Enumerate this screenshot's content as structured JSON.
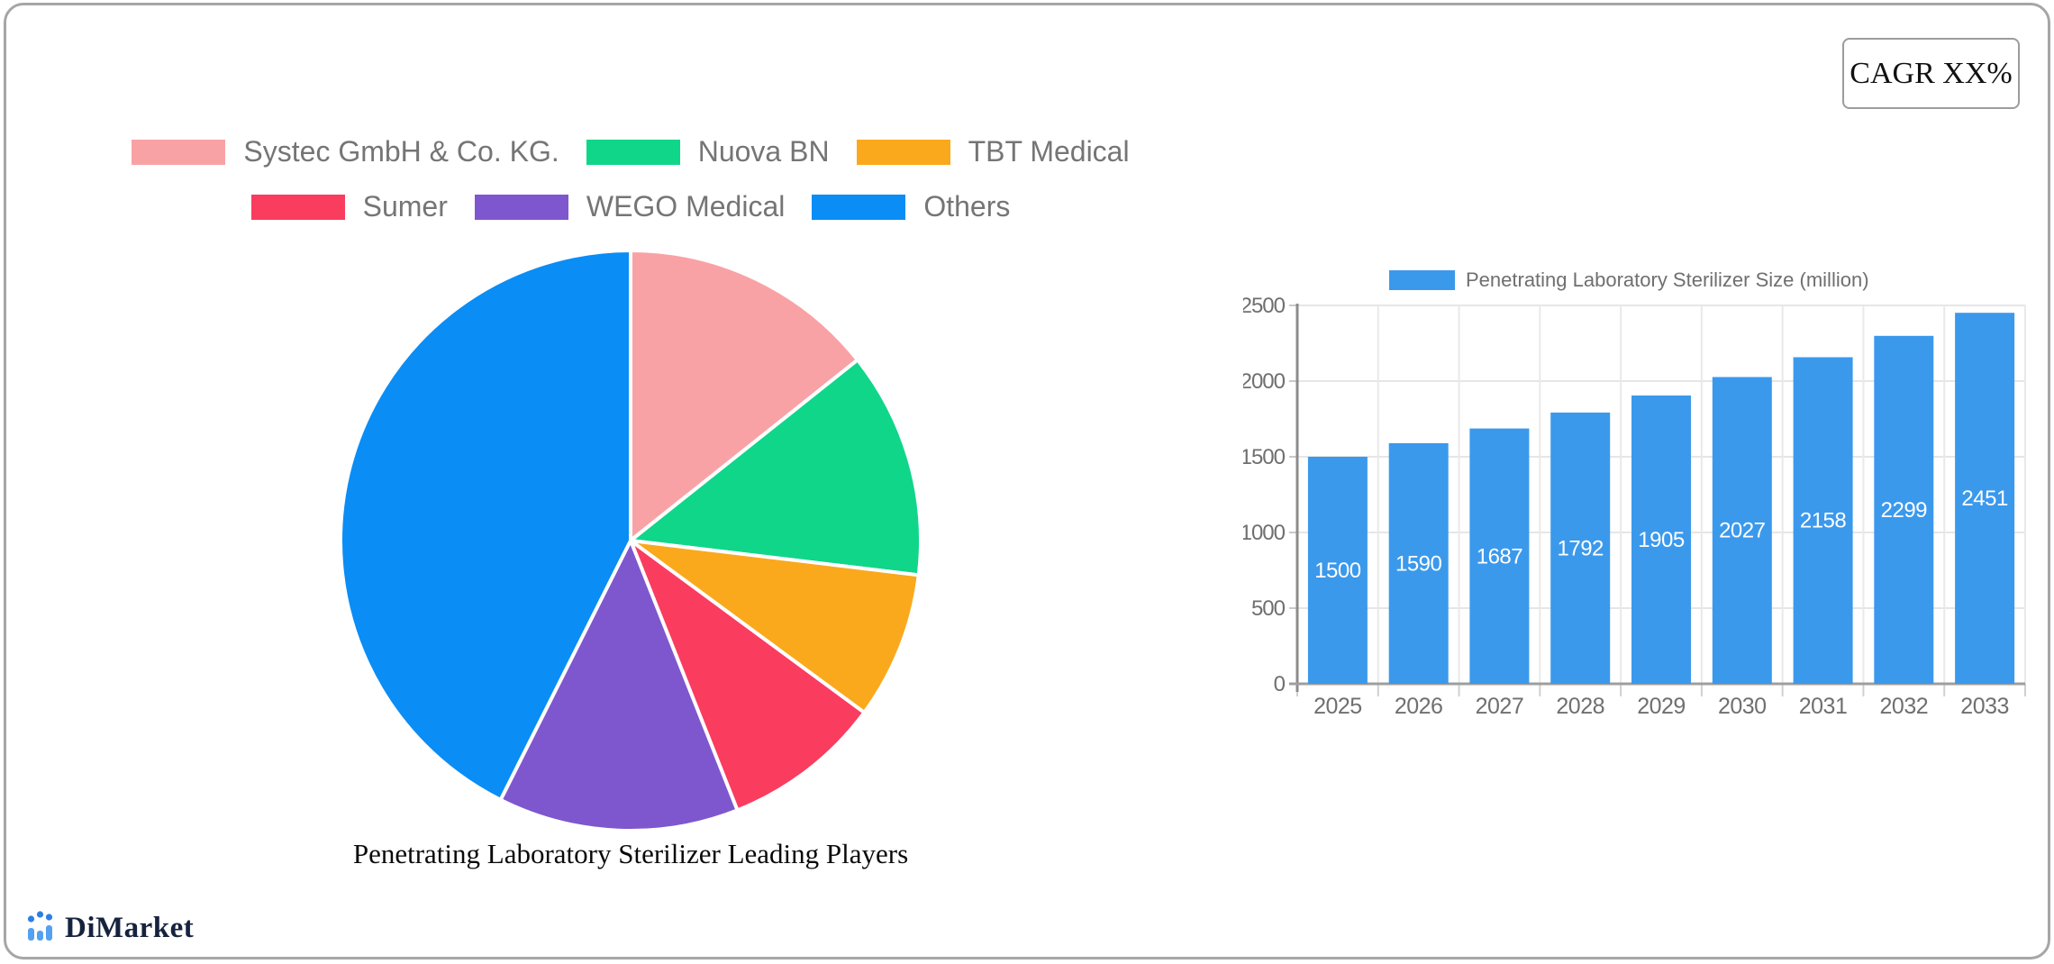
{
  "cagr_box": {
    "label": "CAGR XX%"
  },
  "brand": {
    "name": "DiMarket",
    "icon": "bar-chart-logo-icon",
    "icon_bar_color": "#54a1f2",
    "icon_dot_color": "#2d7fe3"
  },
  "chart_data": [
    {
      "type": "pie",
      "title": "Penetrating Laboratory Sterilizer Leading Players",
      "legend_position": "top",
      "legend_rows": [
        [
          0,
          1,
          2
        ],
        [
          3,
          4,
          5
        ]
      ],
      "start_angle_deg": 0,
      "direction": "clockwise",
      "series": [
        {
          "name": "Systec GmbH & Co. KG.",
          "value": 14.3,
          "color": "#f9a2a6"
        },
        {
          "name": "Nuova BN",
          "value": 12.6,
          "color": "#10d68a"
        },
        {
          "name": "TBT Medical",
          "value": 8.2,
          "color": "#faa91d"
        },
        {
          "name": "Sumer",
          "value": 8.9,
          "color": "#fa3c5f"
        },
        {
          "name": "WEGO Medical",
          "value": 13.4,
          "color": "#7e57ce"
        },
        {
          "name": "Others",
          "value": 42.6,
          "color": "#0a8df5"
        }
      ],
      "unit": "percent (estimated from slice angles)"
    },
    {
      "type": "bar",
      "legend": "Penetrating Laboratory Sterilizer Size (million)",
      "categories": [
        "2025",
        "2026",
        "2027",
        "2028",
        "2029",
        "2030",
        "2031",
        "2032",
        "2033"
      ],
      "values": [
        1500,
        1590,
        1687,
        1792,
        1905,
        2027,
        2158,
        2299,
        2451
      ],
      "bar_color": "#3b99ec",
      "value_label_color": "#ffffff",
      "axis_text_color": "#6f6f6f",
      "ylim": [
        0,
        2500
      ],
      "yticks": [
        0,
        500,
        1000,
        1500,
        2000,
        2500
      ],
      "grid": true,
      "legend_position": "top",
      "value_labels": "inside-middle"
    }
  ]
}
